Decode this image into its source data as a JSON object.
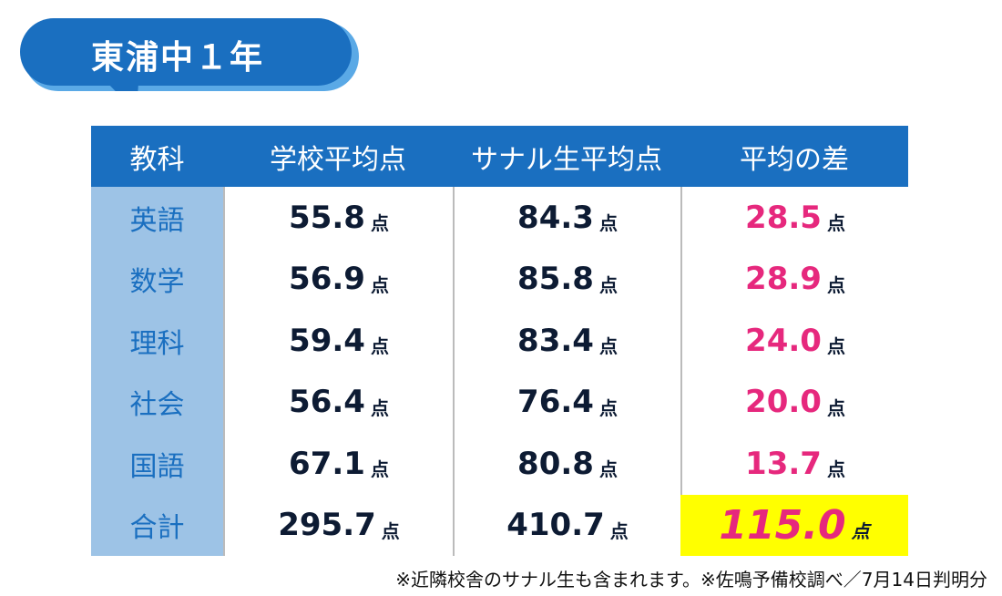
{
  "header": {
    "title": "東浦中１年"
  },
  "table": {
    "columns": [
      "教科",
      "学校平均点",
      "サナル生平均点",
      "平均の差"
    ],
    "unit": "点",
    "rows": [
      [
        "英語",
        "55.8",
        "84.3",
        "28.5"
      ],
      [
        "数学",
        "56.9",
        "85.8",
        "28.9"
      ],
      [
        "理科",
        "59.4",
        "83.4",
        "24.0"
      ],
      [
        "社会",
        "56.4",
        "76.4",
        "20.0"
      ],
      [
        "国語",
        "67.1",
        "80.8",
        "13.7"
      ],
      [
        "合計",
        "295.7",
        "410.7",
        "115.0"
      ]
    ]
  },
  "footnote": "※近隣校舎のサナル生も含まれます。※佐鳴予備校調べ／7月14日判明分"
}
